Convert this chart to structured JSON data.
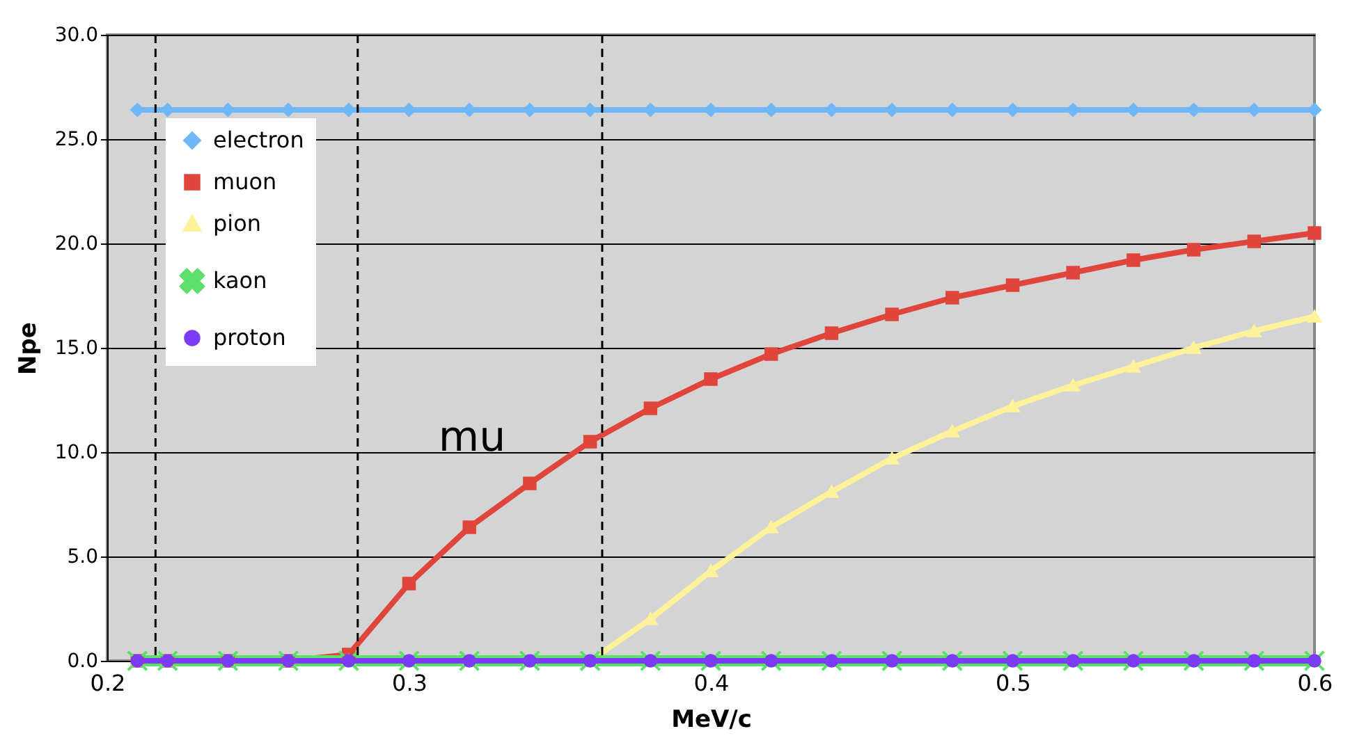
{
  "chart_data": {
    "type": "line",
    "xlabel": "MeV/c",
    "ylabel": "Npe",
    "x": [
      0.21,
      0.22,
      0.24,
      0.26,
      0.28,
      0.3,
      0.32,
      0.34,
      0.36,
      0.38,
      0.4,
      0.42,
      0.44,
      0.46,
      0.48,
      0.5,
      0.52,
      0.54,
      0.56,
      0.58,
      0.6
    ],
    "series": [
      {
        "name": "electron",
        "color": "#6fb7f7",
        "marker": "diamond",
        "values": [
          26.4,
          26.4,
          26.4,
          26.4,
          26.4,
          26.4,
          26.4,
          26.4,
          26.4,
          26.4,
          26.4,
          26.4,
          26.4,
          26.4,
          26.4,
          26.4,
          26.4,
          26.4,
          26.4,
          26.4,
          26.4
        ]
      },
      {
        "name": "muon",
        "color": "#e0453c",
        "marker": "square",
        "values": [
          0,
          0,
          0,
          0,
          0.3,
          3.7,
          6.4,
          8.5,
          10.5,
          12.1,
          13.5,
          14.7,
          15.7,
          16.6,
          17.4,
          18.0,
          18.6,
          19.2,
          19.7,
          20.1,
          20.5
        ]
      },
      {
        "name": "pion",
        "color": "#fff29a",
        "marker": "triangle",
        "values": [
          0,
          0,
          0,
          0,
          0,
          0,
          0,
          0,
          0,
          2.0,
          4.3,
          6.4,
          8.1,
          9.7,
          11.0,
          12.2,
          13.2,
          14.1,
          15.0,
          15.8,
          16.5
        ]
      },
      {
        "name": "kaon",
        "color": "#5ce06a",
        "marker": "cross",
        "values": [
          0,
          0,
          0,
          0,
          0,
          0,
          0,
          0,
          0,
          0,
          0,
          0,
          0,
          0,
          0,
          0,
          0,
          0,
          0,
          0,
          0
        ]
      },
      {
        "name": "proton",
        "color": "#7a3cf5",
        "marker": "circle",
        "values": [
          0,
          0,
          0,
          0,
          0,
          0,
          0,
          0,
          0,
          0,
          0,
          0,
          0,
          0,
          0,
          0,
          0,
          0,
          0,
          0,
          0
        ]
      }
    ],
    "xlim": [
      0.2,
      0.6
    ],
    "xticks": [
      0.2,
      0.3,
      0.4,
      0.5,
      0.6
    ],
    "ylim": [
      0,
      30
    ],
    "yticks": [
      {
        "value": 0,
        "label": "0.0"
      },
      {
        "value": 5,
        "label": "5.0"
      },
      {
        "value": 10,
        "label": "10.0"
      },
      {
        "value": 15,
        "label": "15.0"
      },
      {
        "value": 20,
        "label": "20.0"
      },
      {
        "value": 25,
        "label": "25.0"
      },
      {
        "value": 30,
        "label": "30.0"
      }
    ],
    "ref_lines": [
      {
        "axis": "x",
        "value": 0.216,
        "line_style": "dashed",
        "color": "#000000"
      },
      {
        "axis": "x",
        "value": 0.283,
        "line_style": "dashed",
        "color": "#000000"
      },
      {
        "axis": "x",
        "value": 0.364,
        "line_style": "dashed",
        "color": "#000000"
      }
    ],
    "annotations": [
      "mu"
    ],
    "grid": "y",
    "legend": "top left",
    "line_style": "solid"
  }
}
